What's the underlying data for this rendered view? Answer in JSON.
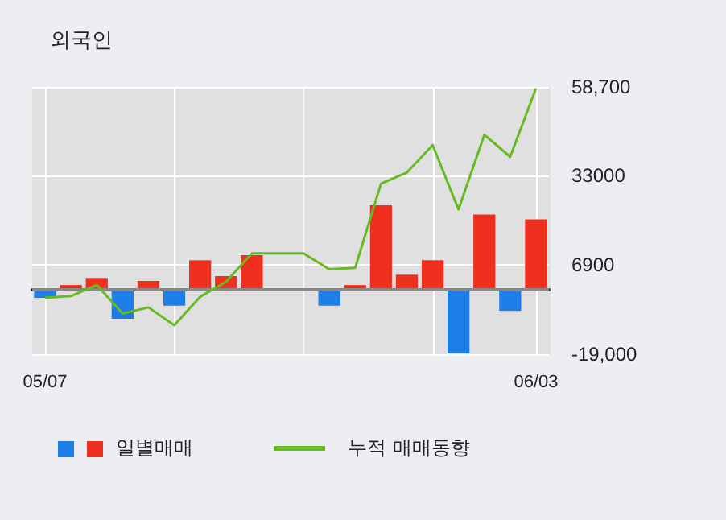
{
  "chart_data": {
    "type": "bar",
    "title": "외국인",
    "categories": [
      "05/07",
      null,
      null,
      null,
      null,
      null,
      null,
      null,
      null,
      null,
      null,
      null,
      null,
      null,
      null,
      null,
      null,
      null,
      null,
      "06/03"
    ],
    "series": [
      {
        "name": "일별매매",
        "colors": [
          "#1e7ee8",
          "#f0301e",
          "#f0301e",
          "#1e7ee8",
          "#f0301e",
          "#1e7ee8",
          "#f0301e",
          "#f0301e",
          "#f0301e",
          "#f0301e",
          "#f0301e",
          "#1e7ee8",
          "#f0301e",
          "#f0301e",
          "#f0301e",
          "#f0301e",
          "#1e7ee8",
          "#f0301e",
          "#1e7ee8",
          "#f0301e"
        ],
        "values": [
          -2600,
          1100,
          3200,
          -8700,
          2300,
          -4900,
          8300,
          3700,
          9800,
          0,
          0,
          -4900,
          1100,
          24300,
          4100,
          8300,
          -18700,
          21600,
          -6400,
          20200
        ]
      },
      {
        "name": "누적 매매동향",
        "type": "line",
        "color": "#66bb22",
        "values": [
          -2600,
          -2100,
          1100,
          -7200,
          -5400,
          -10600,
          -2300,
          2000,
          10300,
          10300,
          10300,
          5700,
          6100,
          30600,
          33800,
          41800,
          23100,
          44800,
          38400,
          58300
        ]
      }
    ],
    "ylim": [
      -19000,
      58700
    ],
    "yticks": [
      {
        "value": 58700,
        "label": "58,700"
      },
      33000,
      6900,
      {
        "value": -19000,
        "label": "-19,000"
      }
    ],
    "grid": true,
    "legend": "bottom",
    "marker": "none",
    "line_style": "solid"
  }
}
